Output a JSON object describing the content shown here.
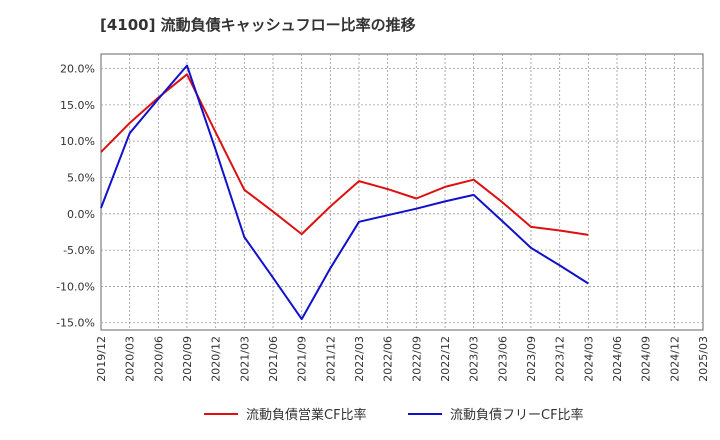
{
  "chart_data": {
    "type": "line",
    "title": "[4100]  流動負債キャッシュフロー比率の推移",
    "x": [
      "2019/12",
      "2020/03",
      "2020/06",
      "2020/09",
      "2020/12",
      "2021/03",
      "2021/06",
      "2021/09",
      "2021/12",
      "2022/03",
      "2022/06",
      "2022/09",
      "2022/12",
      "2023/03",
      "2023/06",
      "2023/09",
      "2023/12",
      "2024/03",
      "2024/06",
      "2024/09",
      "2024/12",
      "2025/03"
    ],
    "y_ticks": [
      "20.0%",
      "15.0%",
      "10.0%",
      "5.0%",
      "0.0%",
      "-5.0%",
      "-10.0%",
      "-15.0%"
    ],
    "y_tick_values": [
      20,
      15,
      10,
      5,
      0,
      -5,
      -10,
      -15
    ],
    "ylim": [
      -16,
      22
    ],
    "grid": true,
    "legend_position": "bottom",
    "series": [
      {
        "name": "流動負債営業CF比率",
        "color": "#dd1111",
        "values": [
          8.5,
          12.5,
          16.0,
          19.2,
          11.2,
          3.3,
          0.3,
          -2.8,
          1.0,
          4.5,
          3.4,
          2.1,
          3.7,
          4.7,
          1.6,
          -1.8,
          -2.3,
          -2.9,
          null,
          null,
          null,
          null
        ]
      },
      {
        "name": "流動負債フリーCF比率",
        "color": "#1111cc",
        "values": [
          0.8,
          11.1,
          15.8,
          20.4,
          8.8,
          -3.2,
          -8.8,
          -14.5,
          -7.5,
          -1.1,
          -0.2,
          0.7,
          1.7,
          2.6,
          -1.0,
          -4.7,
          -7.1,
          -9.6,
          null,
          null,
          null,
          null
        ]
      }
    ]
  }
}
